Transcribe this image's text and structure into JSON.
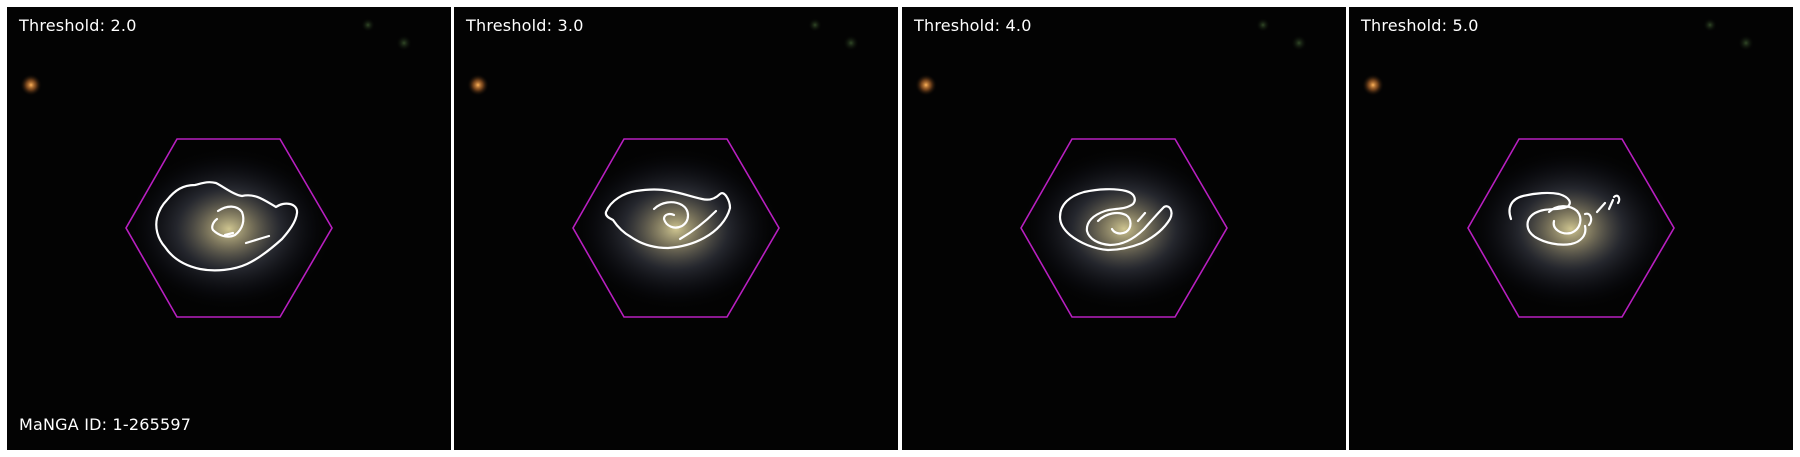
{
  "manga_id_label": "MaNGA ID: 1-265597",
  "colors": {
    "background": "#030303",
    "hexagon": "#b81fc0",
    "contour": "#ffffff",
    "label": "#ffffff"
  },
  "panels": [
    {
      "threshold_label": "Threshold: 2.0",
      "threshold": 2.0
    },
    {
      "threshold_label": "Threshold: 3.0",
      "threshold": 3.0
    },
    {
      "threshold_label": "Threshold: 4.0",
      "threshold": 4.0
    },
    {
      "threshold_label": "Threshold: 5.0",
      "threshold": 5.0
    }
  ]
}
